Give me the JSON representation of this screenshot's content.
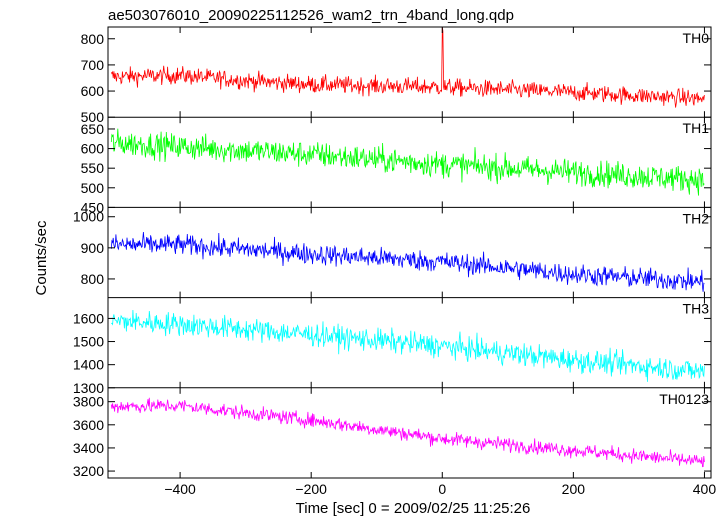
{
  "chart_data": {
    "type": "line",
    "title": "ae503076010_20090225112526_wam2_trn_4band_long.qdp",
    "xlabel": "Time [sec] 0 = 2009/02/25 11:25:26",
    "ylabel": "Counts/sec",
    "xlim": [
      -510,
      410
    ],
    "xticks": [
      -400,
      -200,
      0,
      200,
      400
    ],
    "x_start": -505,
    "x_end": 400,
    "x_step": 1,
    "grid": false,
    "legend": "none",
    "panels": [
      {
        "name": "TH0",
        "color": "#ff0000",
        "ylim": [
          500,
          845
        ],
        "yticks": [
          500,
          600,
          700,
          800
        ],
        "trend": [
          [
            -505,
            655
          ],
          [
            -400,
            660
          ],
          [
            -300,
            640
          ],
          [
            -200,
            625
          ],
          [
            0,
            615
          ],
          [
            200,
            595
          ],
          [
            400,
            570
          ]
        ],
        "noise": 30,
        "spikes": [
          [
            0,
            845
          ],
          [
            1,
            830
          ]
        ]
      },
      {
        "name": "TH1",
        "color": "#00ff00",
        "ylim": [
          450,
          680
        ],
        "yticks": [
          450,
          500,
          550,
          600,
          650
        ],
        "trend": [
          [
            -505,
            615
          ],
          [
            -400,
            605
          ],
          [
            -200,
            585
          ],
          [
            0,
            560
          ],
          [
            200,
            540
          ],
          [
            400,
            520
          ]
        ],
        "noise": 30,
        "spikes": []
      },
      {
        "name": "TH2",
        "color": "#0000ff",
        "ylim": [
          740,
          1030
        ],
        "yticks": [
          800,
          900,
          1000
        ],
        "trend": [
          [
            -505,
            910
          ],
          [
            -400,
            910
          ],
          [
            -200,
            880
          ],
          [
            0,
            855
          ],
          [
            200,
            815
          ],
          [
            400,
            790
          ]
        ],
        "noise": 30,
        "spikes": []
      },
      {
        "name": "TH3",
        "color": "#00ffff",
        "ylim": [
          1300,
          1690
        ],
        "yticks": [
          1300,
          1400,
          1500,
          1600
        ],
        "trend": [
          [
            -505,
            1590
          ],
          [
            -400,
            1575
          ],
          [
            -200,
            1530
          ],
          [
            0,
            1480
          ],
          [
            200,
            1420
          ],
          [
            400,
            1370
          ]
        ],
        "noise": 45,
        "spikes": []
      },
      {
        "name": "TH0123",
        "color": "#ff00ff",
        "ylim": [
          3140,
          3920
        ],
        "yticks": [
          3200,
          3400,
          3600,
          3800
        ],
        "trend": [
          [
            -505,
            3760
          ],
          [
            -400,
            3765
          ],
          [
            -200,
            3640
          ],
          [
            0,
            3480
          ],
          [
            200,
            3380
          ],
          [
            400,
            3280
          ]
        ],
        "noise": 55,
        "spikes": []
      }
    ]
  }
}
